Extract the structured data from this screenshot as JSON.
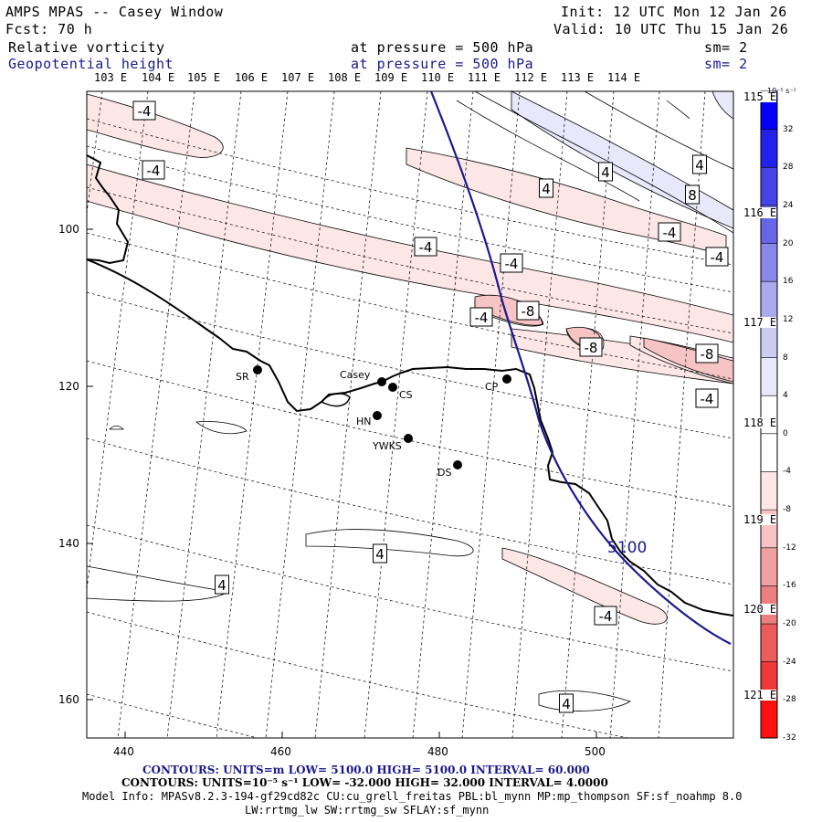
{
  "header": {
    "title": "AMPS MPAS -- Casey Window",
    "fcst": "Fcst:   70 h",
    "init": "Init: 12 UTC Mon 12 Jan 26",
    "valid": "Valid: 10 UTC Thu 15 Jan 26",
    "field1": {
      "name": "Relative vorticity",
      "level": "at pressure =  500 hPa",
      "sm": "sm= 2"
    },
    "field2": {
      "name": "Geopotential height",
      "level": "at pressure =  500 hPa",
      "sm": "sm= 2"
    }
  },
  "lon_labels": [
    "103 E",
    "104 E",
    "105 E",
    "106 E",
    "107 E",
    "108 E",
    "109 E",
    "110 E",
    "111 E",
    "112 E",
    "113 E",
    "114 E"
  ],
  "lat_side_labels": [
    "115 E",
    "116 E",
    "117 E",
    "118 E",
    "119 E",
    "120 E",
    "121 E"
  ],
  "x_ticks": [
    "440",
    "460",
    "480",
    "500"
  ],
  "y_ticks": [
    "100",
    "120",
    "140",
    "160"
  ],
  "stations": [
    {
      "name": "Casey"
    },
    {
      "name": "CS"
    },
    {
      "name": "SR"
    },
    {
      "name": "HN"
    },
    {
      "name": "YWKS"
    },
    {
      "name": "DS"
    },
    {
      "name": "CP"
    }
  ],
  "contour_labels": {
    "neg4": "-4",
    "neg8": "-8",
    "pos4": "4",
    "pos8": "8",
    "height": "5100"
  },
  "colorbar": {
    "unit": "10⁻⁵ s⁻¹",
    "labels": [
      "32",
      "28",
      "24",
      "20",
      "16",
      "12",
      "8",
      "4",
      "0",
      "-4",
      "-8",
      "-12",
      "-16",
      "-20",
      "-24",
      "-28",
      "-32"
    ],
    "colors": [
      "#0000ff",
      "#2222ee",
      "#4444e8",
      "#6666e6",
      "#8888ea",
      "#aaaaee",
      "#ccccf2",
      "#e8e8fa",
      "#ffffff",
      "#ffffff",
      "#fce6e6",
      "#f6c4c4",
      "#f0a0a0",
      "#ec8080",
      "#ec5c5c",
      "#f03838",
      "#ff1010"
    ]
  },
  "footer": {
    "contours1": "CONTOURS:  UNITS=m  LOW=  5100.0        HIGH=  5100.0        INTERVAL=  60.000",
    "contours2": "CONTOURS:  UNITS=10⁻⁵ s⁻¹   LOW= -32.000        HIGH=  32.000        INTERVAL=   4.0000",
    "model_info": "Model Info: MPASv8.2.3-194-gf29cd82c CU:cu_grell_freitas PBL:bl_mynn MP:mp_thompson SF:sf_noahmp 8.0",
    "model_info2": "LW:rrtmg_lw SW:rrtmg_sw SFLAY:sf_mynn"
  }
}
